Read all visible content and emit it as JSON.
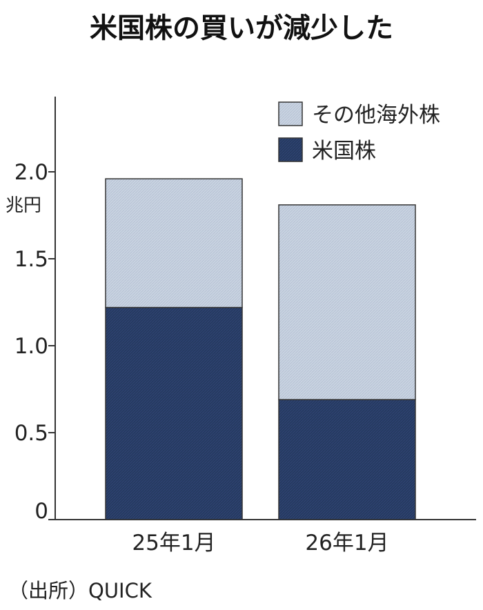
{
  "chart_data": {
    "type": "bar",
    "stacked": true,
    "title": "米国株の買いが減少した",
    "ylabel": "兆円",
    "ylim": [
      0,
      2.4
    ],
    "yticks": [
      0,
      0.5,
      1.0,
      1.5,
      2.0
    ],
    "ytick_labels": [
      "0",
      "0.5",
      "1.0",
      "1.5",
      "2.0"
    ],
    "categories": [
      "25年1月",
      "26年1月"
    ],
    "series": [
      {
        "name": "米国株",
        "values": [
          1.22,
          0.69
        ],
        "color": "#263a60"
      },
      {
        "name": "その他海外株",
        "values": [
          0.74,
          1.12
        ],
        "color": "#c9d3e1"
      }
    ],
    "legend": {
      "position": "top-right",
      "order": [
        "その他海外株",
        "米国株"
      ]
    },
    "grid": false
  },
  "source": "（出所）QUICK"
}
